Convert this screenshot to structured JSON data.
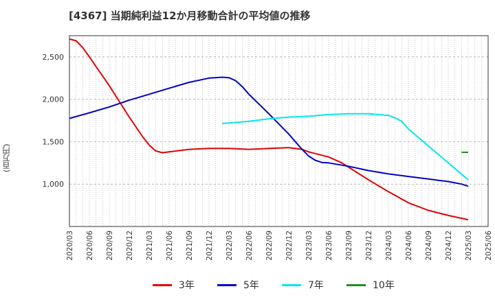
{
  "chart_data": {
    "type": "line",
    "title": "[4367]  当期純利益12か月移動合計の平均値の推移",
    "ylabel": "(百万円)",
    "xlabel": "",
    "ylim": [
      500,
      2750
    ],
    "yticks": [
      1000,
      1500,
      2000,
      2500
    ],
    "ytick_labels": [
      "1,000",
      "1,500",
      "2,000",
      "2,500"
    ],
    "x_range": [
      "2020-03",
      "2025-06"
    ],
    "xticks": [
      "2020/03",
      "2020/06",
      "2020/09",
      "2020/12",
      "2021/03",
      "2021/06",
      "2021/09",
      "2021/12",
      "2022/03",
      "2022/06",
      "2022/09",
      "2022/12",
      "2023/03",
      "2023/06",
      "2023/09",
      "2023/12",
      "2024/03",
      "2024/06",
      "2024/09",
      "2024/12",
      "2025/03",
      "2025/06"
    ],
    "grid": true,
    "legend_position": "bottom",
    "series": [
      {
        "name": "3年",
        "color": "#e00000",
        "points": [
          [
            "2020-03",
            2710
          ],
          [
            "2020-04",
            2690
          ],
          [
            "2020-05",
            2610
          ],
          [
            "2020-06",
            2500
          ],
          [
            "2020-09",
            2160
          ],
          [
            "2020-12",
            1790
          ],
          [
            "2021-02",
            1560
          ],
          [
            "2021-03",
            1460
          ],
          [
            "2021-04",
            1390
          ],
          [
            "2021-05",
            1370
          ],
          [
            "2021-06",
            1380
          ],
          [
            "2021-09",
            1410
          ],
          [
            "2021-12",
            1420
          ],
          [
            "2022-03",
            1420
          ],
          [
            "2022-06",
            1410
          ],
          [
            "2022-09",
            1420
          ],
          [
            "2022-12",
            1430
          ],
          [
            "2023-02",
            1410
          ],
          [
            "2023-03",
            1380
          ],
          [
            "2023-06",
            1320
          ],
          [
            "2023-08",
            1250
          ],
          [
            "2023-09",
            1200
          ],
          [
            "2023-12",
            1050
          ],
          [
            "2024-03",
            910
          ],
          [
            "2024-06",
            780
          ],
          [
            "2024-09",
            690
          ],
          [
            "2024-12",
            630
          ],
          [
            "2025-03",
            580
          ]
        ]
      },
      {
        "name": "5年",
        "color": "#0000c8",
        "points": [
          [
            "2020-03",
            1775
          ],
          [
            "2020-06",
            1840
          ],
          [
            "2020-09",
            1910
          ],
          [
            "2020-12",
            1990
          ],
          [
            "2021-03",
            2060
          ],
          [
            "2021-06",
            2130
          ],
          [
            "2021-09",
            2200
          ],
          [
            "2021-12",
            2250
          ],
          [
            "2022-02",
            2260
          ],
          [
            "2022-03",
            2255
          ],
          [
            "2022-04",
            2220
          ],
          [
            "2022-05",
            2150
          ],
          [
            "2022-06",
            2060
          ],
          [
            "2022-09",
            1830
          ],
          [
            "2022-12",
            1590
          ],
          [
            "2023-02",
            1410
          ],
          [
            "2023-03",
            1330
          ],
          [
            "2023-04",
            1280
          ],
          [
            "2023-05",
            1255
          ],
          [
            "2023-06",
            1250
          ],
          [
            "2023-09",
            1210
          ],
          [
            "2023-12",
            1160
          ],
          [
            "2024-03",
            1120
          ],
          [
            "2024-06",
            1090
          ],
          [
            "2024-09",
            1060
          ],
          [
            "2024-12",
            1030
          ],
          [
            "2025-02",
            1000
          ],
          [
            "2025-03",
            975
          ]
        ]
      },
      {
        "name": "7年",
        "color": "#00e5ee",
        "points": [
          [
            "2022-02",
            1715
          ],
          [
            "2022-03",
            1720
          ],
          [
            "2022-06",
            1740
          ],
          [
            "2022-09",
            1770
          ],
          [
            "2022-12",
            1790
          ],
          [
            "2023-03",
            1800
          ],
          [
            "2023-06",
            1820
          ],
          [
            "2023-09",
            1830
          ],
          [
            "2023-12",
            1830
          ],
          [
            "2024-03",
            1810
          ],
          [
            "2024-04",
            1780
          ],
          [
            "2024-05",
            1740
          ],
          [
            "2024-06",
            1650
          ],
          [
            "2024-09",
            1450
          ],
          [
            "2024-12",
            1250
          ],
          [
            "2025-03",
            1050
          ]
        ]
      },
      {
        "name": "10年",
        "color": "#228b22",
        "points": [
          [
            "2025-02",
            1375
          ],
          [
            "2025-03",
            1375
          ]
        ]
      }
    ]
  }
}
